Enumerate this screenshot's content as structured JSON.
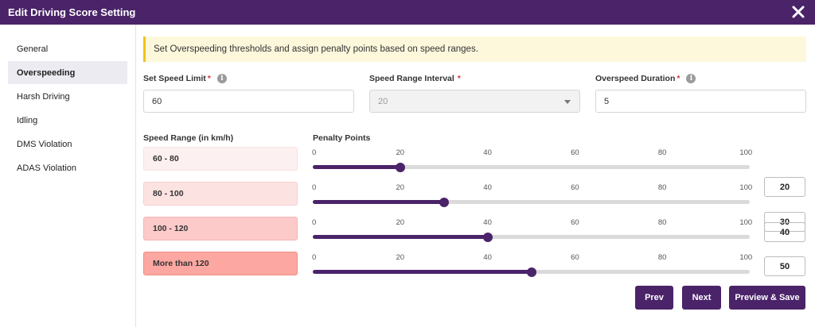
{
  "dialog": {
    "title": "Edit Driving Score Setting"
  },
  "icons": {
    "close": "close-icon",
    "info": "info-icon",
    "dropdown": "chevron-down-icon"
  },
  "colors": {
    "primary": "#4a2369",
    "notice_bg": "#fdf8dc",
    "notice_border": "#f0c419",
    "required": "#d9363e"
  },
  "sidebar": {
    "active": "Overspeeding",
    "items": [
      {
        "label": "General"
      },
      {
        "label": "Overspeeding"
      },
      {
        "label": "Harsh Driving"
      },
      {
        "label": "Idling"
      },
      {
        "label": "DMS Violation"
      },
      {
        "label": "ADAS Violation"
      }
    ]
  },
  "notice": {
    "text": "Set Overspeeding thresholds and assign penalty points based on speed ranges."
  },
  "form": {
    "speed_limit": {
      "label": "Set Speed Limit",
      "required_mark": "*",
      "value": "60",
      "info_glyph": "i"
    },
    "range_interval": {
      "label": "Speed Range Interval",
      "required_mark": "*",
      "value": "20",
      "disabled": true
    },
    "overspeed_duration": {
      "label": "Overspeed Duration",
      "required_mark": "*",
      "value": "5",
      "info_glyph": "i"
    }
  },
  "table": {
    "range_header": "Speed Range (in km/h)",
    "points_header": "Penalty Points",
    "scale": {
      "min": 0,
      "max": 100,
      "ticks": [
        "0",
        "20",
        "40",
        "60",
        "80",
        "100"
      ]
    },
    "rows": [
      {
        "range": "60 - 80",
        "points": 20,
        "points_text": "20",
        "bg": "#fdf0f0",
        "border": "#f7e2e2"
      },
      {
        "range": "80 - 100",
        "points": 30,
        "points_text": "30",
        "bg": "#fde2e2",
        "border": "#f7cfcf"
      },
      {
        "range": "100 - 120",
        "points": 40,
        "points_text": "40",
        "bg": "#fdcaca",
        "border": "#f5b5b5"
      },
      {
        "range": "More than 120",
        "points": 50,
        "points_text": "50",
        "bg": "#fca7a1",
        "border": "#f08e87"
      }
    ]
  },
  "buttons": {
    "prev": "Prev",
    "next": "Next",
    "save": "Preview & Save"
  }
}
